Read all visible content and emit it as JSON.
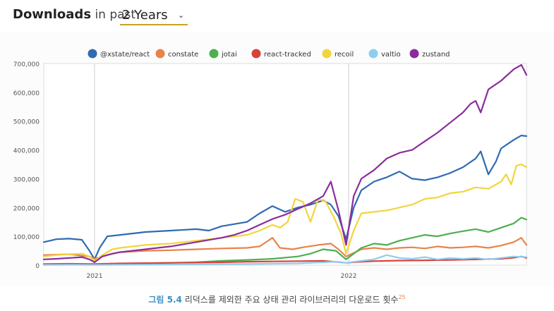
{
  "header": {
    "title_bold": "Downloads",
    "title_rest": " in past",
    "period_label": "2 Years",
    "period_arrow": "⌄"
  },
  "caption": {
    "figure": "그림 5.4",
    "text": " 리덕스를 제외한 주요 상태 관리 라이브러리의 다운로드 횟수",
    "footnote": "25"
  },
  "chart_data": {
    "type": "line",
    "title": "Downloads in past 2 Years",
    "xlabel": "",
    "ylabel": "",
    "x_start": 2020.8,
    "x_end": 2022.7,
    "ylim": [
      0,
      700000
    ],
    "yticks": [
      0,
      100000,
      200000,
      300000,
      400000,
      500000,
      600000,
      700000
    ],
    "ytick_labels": [
      "0",
      "100,000",
      "200,000",
      "300,000",
      "400,000",
      "500,000",
      "600,000",
      "700,000"
    ],
    "xticks": [
      2021,
      2022
    ],
    "xtick_labels": [
      "2021",
      "2022"
    ],
    "grid": "vertical",
    "legend_position": "top",
    "series": [
      {
        "name": "@xstate/react",
        "color": "#2f6bb3",
        "points": [
          [
            2020.8,
            80000
          ],
          [
            2020.85,
            90000
          ],
          [
            2020.9,
            92000
          ],
          [
            2020.95,
            88000
          ],
          [
            2020.98,
            50000
          ],
          [
            2021.0,
            20000
          ],
          [
            2021.02,
            60000
          ],
          [
            2021.05,
            100000
          ],
          [
            2021.1,
            105000
          ],
          [
            2021.2,
            115000
          ],
          [
            2021.3,
            120000
          ],
          [
            2021.4,
            125000
          ],
          [
            2021.45,
            120000
          ],
          [
            2021.5,
            135000
          ],
          [
            2021.6,
            150000
          ],
          [
            2021.65,
            180000
          ],
          [
            2021.7,
            205000
          ],
          [
            2021.75,
            185000
          ],
          [
            2021.8,
            200000
          ],
          [
            2021.85,
            210000
          ],
          [
            2021.9,
            225000
          ],
          [
            2021.93,
            210000
          ],
          [
            2021.96,
            170000
          ],
          [
            2021.99,
            90000
          ],
          [
            2022.02,
            200000
          ],
          [
            2022.05,
            260000
          ],
          [
            2022.1,
            290000
          ],
          [
            2022.15,
            305000
          ],
          [
            2022.2,
            325000
          ],
          [
            2022.25,
            300000
          ],
          [
            2022.3,
            295000
          ],
          [
            2022.35,
            305000
          ],
          [
            2022.4,
            320000
          ],
          [
            2022.45,
            340000
          ],
          [
            2022.5,
            370000
          ],
          [
            2022.52,
            395000
          ],
          [
            2022.55,
            315000
          ],
          [
            2022.58,
            360000
          ],
          [
            2022.6,
            405000
          ],
          [
            2022.65,
            435000
          ],
          [
            2022.68,
            450000
          ],
          [
            2022.7,
            448000
          ]
        ]
      },
      {
        "name": "constate",
        "color": "#e8834a",
        "points": [
          [
            2020.8,
            35000
          ],
          [
            2020.9,
            38000
          ],
          [
            2020.98,
            30000
          ],
          [
            2021.0,
            22000
          ],
          [
            2021.05,
            35000
          ],
          [
            2021.1,
            45000
          ],
          [
            2021.2,
            50000
          ],
          [
            2021.3,
            52000
          ],
          [
            2021.4,
            55000
          ],
          [
            2021.5,
            58000
          ],
          [
            2021.6,
            60000
          ],
          [
            2021.65,
            65000
          ],
          [
            2021.7,
            95000
          ],
          [
            2021.73,
            60000
          ],
          [
            2021.78,
            55000
          ],
          [
            2021.82,
            62000
          ],
          [
            2021.88,
            70000
          ],
          [
            2021.93,
            75000
          ],
          [
            2021.96,
            55000
          ],
          [
            2021.99,
            30000
          ],
          [
            2022.05,
            55000
          ],
          [
            2022.1,
            60000
          ],
          [
            2022.15,
            55000
          ],
          [
            2022.2,
            60000
          ],
          [
            2022.25,
            62000
          ],
          [
            2022.3,
            58000
          ],
          [
            2022.35,
            65000
          ],
          [
            2022.4,
            60000
          ],
          [
            2022.45,
            62000
          ],
          [
            2022.5,
            65000
          ],
          [
            2022.55,
            60000
          ],
          [
            2022.6,
            68000
          ],
          [
            2022.65,
            80000
          ],
          [
            2022.68,
            95000
          ],
          [
            2022.7,
            70000
          ]
        ]
      },
      {
        "name": "jotai",
        "color": "#4caf50",
        "points": [
          [
            2020.8,
            2000
          ],
          [
            2020.9,
            3000
          ],
          [
            2021.0,
            2000
          ],
          [
            2021.1,
            4000
          ],
          [
            2021.2,
            6000
          ],
          [
            2021.3,
            8000
          ],
          [
            2021.4,
            10000
          ],
          [
            2021.5,
            15000
          ],
          [
            2021.6,
            18000
          ],
          [
            2021.7,
            22000
          ],
          [
            2021.8,
            30000
          ],
          [
            2021.85,
            40000
          ],
          [
            2021.9,
            55000
          ],
          [
            2021.95,
            50000
          ],
          [
            2021.99,
            20000
          ],
          [
            2022.02,
            40000
          ],
          [
            2022.05,
            60000
          ],
          [
            2022.1,
            75000
          ],
          [
            2022.15,
            70000
          ],
          [
            2022.2,
            85000
          ],
          [
            2022.25,
            95000
          ],
          [
            2022.3,
            105000
          ],
          [
            2022.35,
            100000
          ],
          [
            2022.4,
            110000
          ],
          [
            2022.45,
            118000
          ],
          [
            2022.5,
            125000
          ],
          [
            2022.55,
            115000
          ],
          [
            2022.6,
            130000
          ],
          [
            2022.65,
            145000
          ],
          [
            2022.68,
            165000
          ],
          [
            2022.7,
            158000
          ]
        ]
      },
      {
        "name": "react-tracked",
        "color": "#d9423a",
        "points": [
          [
            2020.8,
            4000
          ],
          [
            2020.9,
            5000
          ],
          [
            2021.0,
            4000
          ],
          [
            2021.1,
            6000
          ],
          [
            2021.2,
            7000
          ],
          [
            2021.3,
            8000
          ],
          [
            2021.4,
            9000
          ],
          [
            2021.5,
            10000
          ],
          [
            2021.6,
            12000
          ],
          [
            2021.7,
            13000
          ],
          [
            2021.8,
            14000
          ],
          [
            2021.9,
            15000
          ],
          [
            2021.99,
            8000
          ],
          [
            2022.05,
            12000
          ],
          [
            2022.1,
            14000
          ],
          [
            2022.2,
            16000
          ],
          [
            2022.3,
            17000
          ],
          [
            2022.4,
            18000
          ],
          [
            2022.5,
            20000
          ],
          [
            2022.6,
            22000
          ],
          [
            2022.65,
            26000
          ],
          [
            2022.68,
            30000
          ],
          [
            2022.7,
            25000
          ]
        ]
      },
      {
        "name": "recoil",
        "color": "#f2d53c",
        "points": [
          [
            2020.8,
            30000
          ],
          [
            2020.85,
            35000
          ],
          [
            2020.9,
            38000
          ],
          [
            2020.95,
            40000
          ],
          [
            2020.98,
            30000
          ],
          [
            2021.0,
            15000
          ],
          [
            2021.03,
            35000
          ],
          [
            2021.07,
            55000
          ],
          [
            2021.1,
            60000
          ],
          [
            2021.2,
            70000
          ],
          [
            2021.3,
            75000
          ],
          [
            2021.4,
            85000
          ],
          [
            2021.5,
            95000
          ],
          [
            2021.6,
            105000
          ],
          [
            2021.65,
            120000
          ],
          [
            2021.7,
            140000
          ],
          [
            2021.73,
            130000
          ],
          [
            2021.76,
            150000
          ],
          [
            2021.79,
            230000
          ],
          [
            2021.82,
            220000
          ],
          [
            2021.85,
            150000
          ],
          [
            2021.88,
            230000
          ],
          [
            2021.91,
            220000
          ],
          [
            2021.94,
            170000
          ],
          [
            2021.97,
            110000
          ],
          [
            2021.99,
            40000
          ],
          [
            2022.02,
            120000
          ],
          [
            2022.05,
            180000
          ],
          [
            2022.1,
            185000
          ],
          [
            2022.15,
            190000
          ],
          [
            2022.2,
            200000
          ],
          [
            2022.25,
            210000
          ],
          [
            2022.3,
            230000
          ],
          [
            2022.35,
            235000
          ],
          [
            2022.4,
            250000
          ],
          [
            2022.45,
            255000
          ],
          [
            2022.5,
            270000
          ],
          [
            2022.55,
            265000
          ],
          [
            2022.6,
            290000
          ],
          [
            2022.62,
            315000
          ],
          [
            2022.64,
            280000
          ],
          [
            2022.66,
            345000
          ],
          [
            2022.68,
            350000
          ],
          [
            2022.7,
            340000
          ]
        ]
      },
      {
        "name": "valtio",
        "color": "#8ecdf0",
        "points": [
          [
            2020.8,
            1000
          ],
          [
            2020.9,
            1500
          ],
          [
            2021.0,
            1000
          ],
          [
            2021.2,
            2000
          ],
          [
            2021.4,
            3000
          ],
          [
            2021.6,
            4000
          ],
          [
            2021.8,
            6000
          ],
          [
            2021.95,
            12000
          ],
          [
            2021.99,
            8000
          ],
          [
            2022.05,
            15000
          ],
          [
            2022.1,
            20000
          ],
          [
            2022.15,
            35000
          ],
          [
            2022.2,
            25000
          ],
          [
            2022.25,
            22000
          ],
          [
            2022.3,
            28000
          ],
          [
            2022.35,
            20000
          ],
          [
            2022.4,
            25000
          ],
          [
            2022.45,
            22000
          ],
          [
            2022.5,
            25000
          ],
          [
            2022.55,
            20000
          ],
          [
            2022.6,
            25000
          ],
          [
            2022.65,
            30000
          ],
          [
            2022.7,
            28000
          ]
        ]
      },
      {
        "name": "zustand",
        "color": "#8a2d9c",
        "points": [
          [
            2020.8,
            20000
          ],
          [
            2020.85,
            22000
          ],
          [
            2020.9,
            25000
          ],
          [
            2020.95,
            28000
          ],
          [
            2020.98,
            20000
          ],
          [
            2021.0,
            10000
          ],
          [
            2021.03,
            30000
          ],
          [
            2021.07,
            40000
          ],
          [
            2021.1,
            45000
          ],
          [
            2021.2,
            55000
          ],
          [
            2021.3,
            65000
          ],
          [
            2021.4,
            80000
          ],
          [
            2021.5,
            95000
          ],
          [
            2021.55,
            105000
          ],
          [
            2021.6,
            120000
          ],
          [
            2021.65,
            140000
          ],
          [
            2021.7,
            160000
          ],
          [
            2021.75,
            175000
          ],
          [
            2021.8,
            195000
          ],
          [
            2021.85,
            215000
          ],
          [
            2021.9,
            240000
          ],
          [
            2021.93,
            290000
          ],
          [
            2021.96,
            190000
          ],
          [
            2021.99,
            70000
          ],
          [
            2022.02,
            240000
          ],
          [
            2022.05,
            300000
          ],
          [
            2022.1,
            330000
          ],
          [
            2022.15,
            370000
          ],
          [
            2022.2,
            390000
          ],
          [
            2022.25,
            400000
          ],
          [
            2022.3,
            430000
          ],
          [
            2022.35,
            460000
          ],
          [
            2022.4,
            495000
          ],
          [
            2022.45,
            530000
          ],
          [
            2022.48,
            560000
          ],
          [
            2022.5,
            570000
          ],
          [
            2022.52,
            530000
          ],
          [
            2022.55,
            610000
          ],
          [
            2022.6,
            640000
          ],
          [
            2022.65,
            680000
          ],
          [
            2022.68,
            695000
          ],
          [
            2022.7,
            660000
          ]
        ]
      }
    ]
  }
}
